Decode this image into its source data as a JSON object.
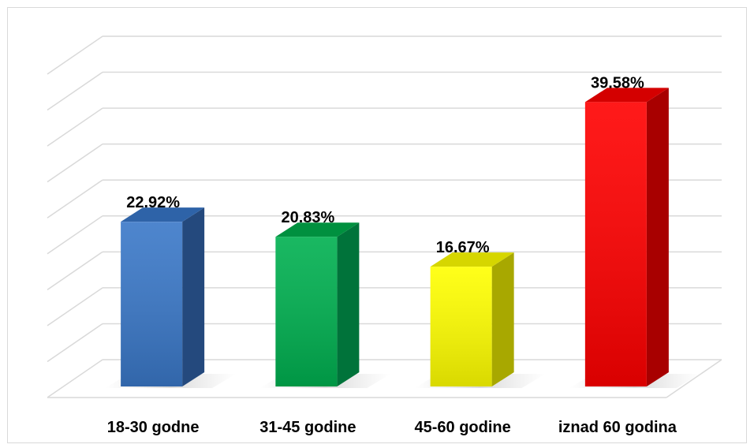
{
  "chart_data": {
    "type": "bar",
    "style": "3d-column",
    "categories": [
      "18-30 godne",
      "31-45 godine",
      "45-60 godine",
      "iznad 60 godina"
    ],
    "values": [
      22.92,
      20.83,
      16.67,
      39.58
    ],
    "value_labels": [
      "22.92%",
      "20.83%",
      "16.67%",
      "39.58%"
    ],
    "bar_colors": [
      "#3a78c8",
      "#00b050",
      "#ffff00",
      "#ff0000"
    ],
    "bar_side_colors": [
      "#24497d",
      "#00733a",
      "#a8a800",
      "#a80000"
    ],
    "bar_top_colors": [
      "#2e63a8",
      "#00903f",
      "#d6d600",
      "#d40000"
    ],
    "ylim": [
      0,
      45
    ],
    "y_step": 5,
    "grid": true,
    "legend": "none",
    "title": "",
    "xlabel": "",
    "ylabel": ""
  }
}
